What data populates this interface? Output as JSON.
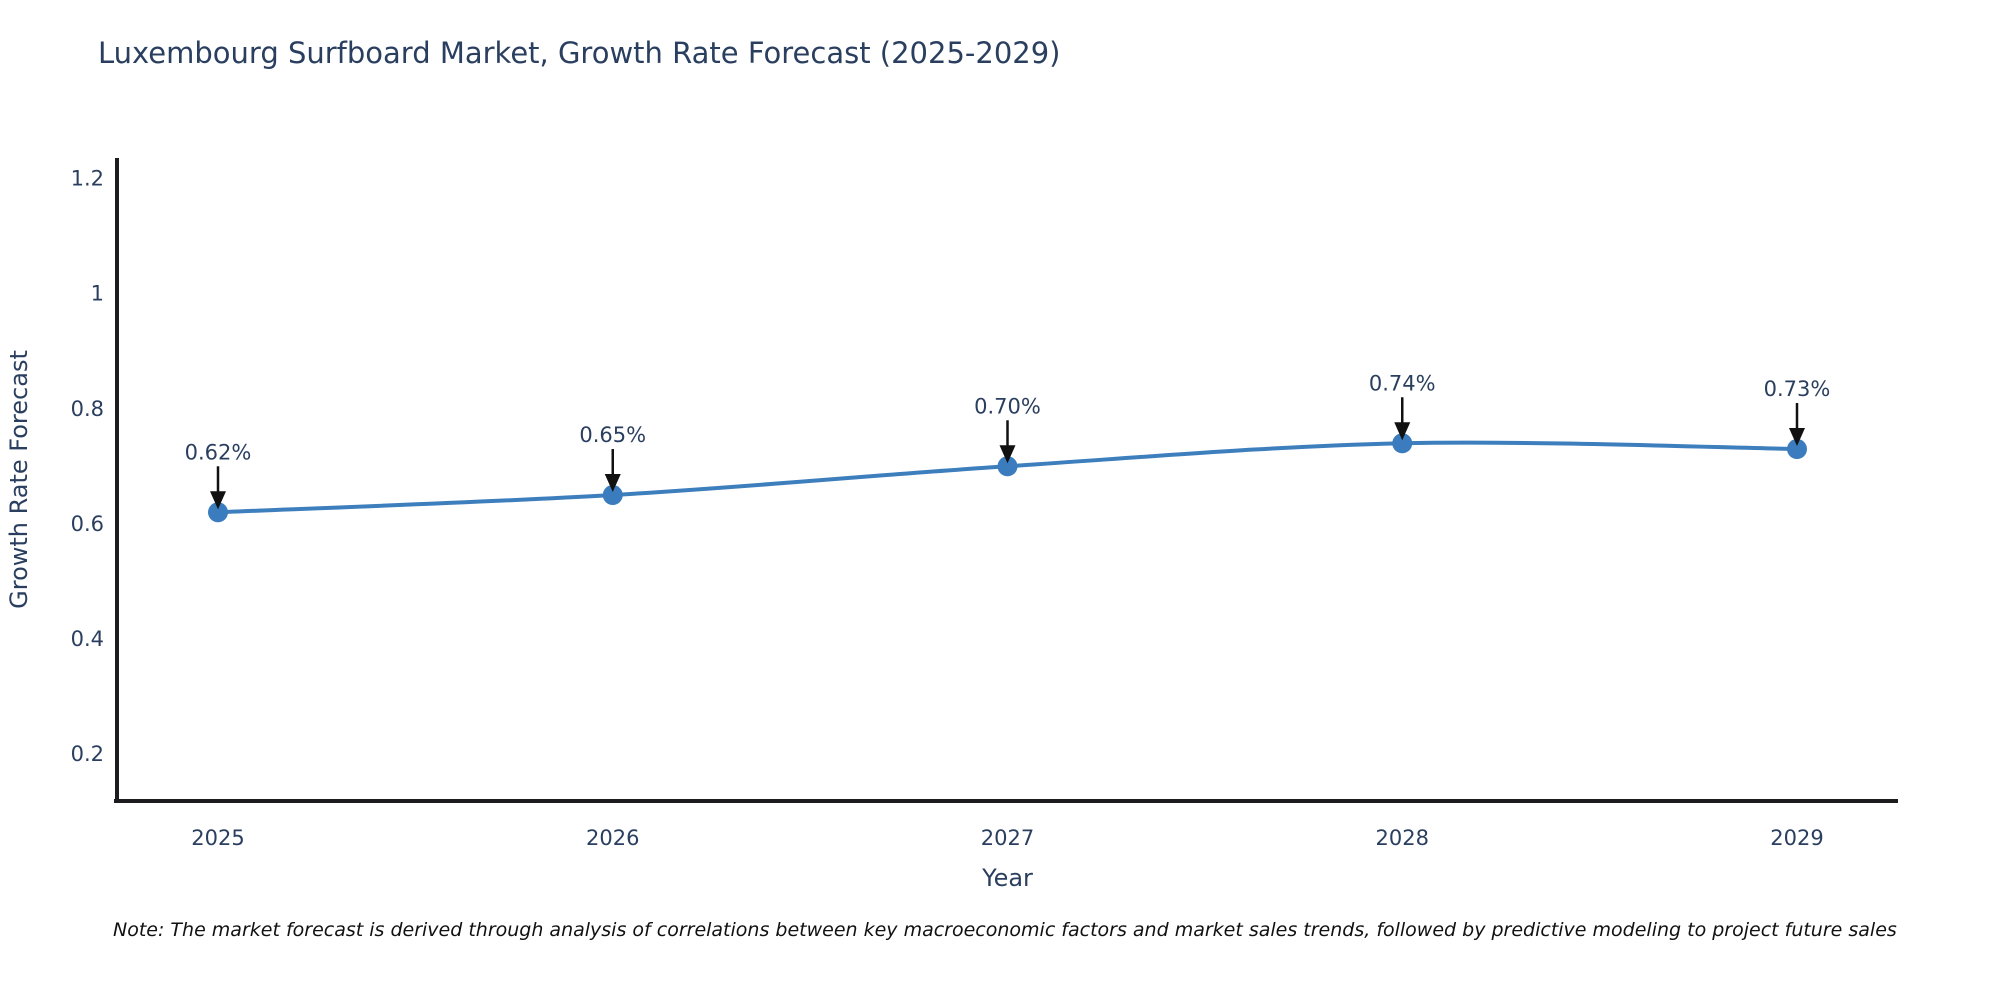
{
  "note": "Note: The market forecast is derived through analysis of correlations between key macroeconomic factors and market sales trends, followed by predictive modeling to project future sales",
  "chart_data": {
    "type": "line",
    "title": "Luxembourg Surfboard Market, Growth Rate Forecast (2025-2029)",
    "categories": [
      "2025",
      "2026",
      "2027",
      "2028",
      "2029"
    ],
    "series": [
      {
        "name": "Growth Rate Forecast",
        "values": [
          0.62,
          0.65,
          0.7,
          0.74,
          0.73
        ]
      }
    ],
    "point_labels": [
      "0.62%",
      "0.65%",
      "0.70%",
      "0.74%",
      "0.73%"
    ],
    "xlabel": "Year",
    "ylabel": "Growth Rate Forecast",
    "ylim": [
      0.118,
      1.236
    ],
    "yticks": [
      0.2,
      0.4,
      0.6,
      0.8,
      1,
      1.2
    ],
    "ytick_labels": [
      "0.2",
      "0.4",
      "0.6",
      "0.8",
      "1",
      "1.2"
    ],
    "grid": false,
    "legend": "none",
    "line_smoothing": "spline",
    "colors": {
      "line": "#3d7ebd",
      "marker": "#3a7cbd",
      "axis": "#1c1c1e",
      "text": "#2a3f5f",
      "annotation_text": "#2a3f5f",
      "arrow": "#111111",
      "background": "#ffffff"
    }
  }
}
